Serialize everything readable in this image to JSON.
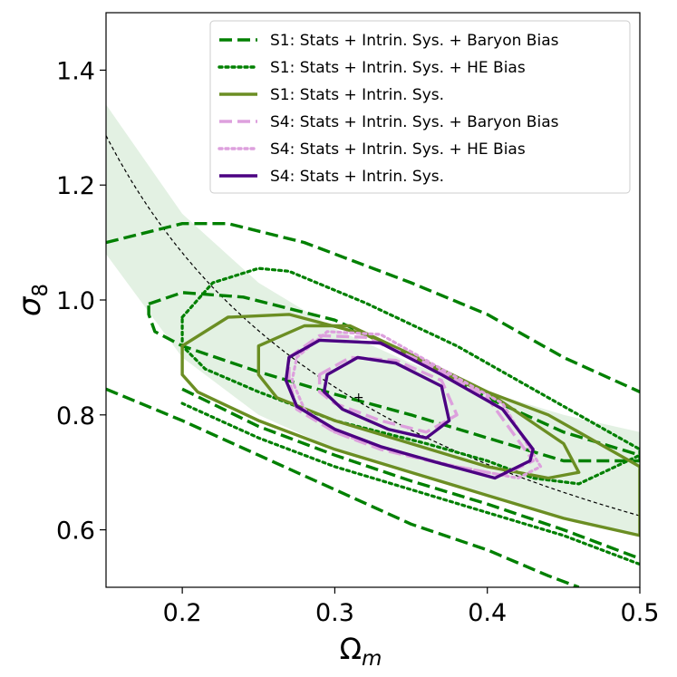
{
  "chart_data": {
    "type": "contour",
    "xlabel": "Ω",
    "xlabel_sub": "m",
    "ylabel": "σ",
    "ylabel_sub": "8",
    "xlim": [
      0.15,
      0.5
    ],
    "ylim": [
      0.5,
      1.5
    ],
    "xticks": [
      0.2,
      0.3,
      0.4,
      0.5
    ],
    "xtick_labels": [
      "0.2",
      "0.3",
      "0.4",
      "0.5"
    ],
    "yticks": [
      0.6,
      0.8,
      1.0,
      1.2,
      1.4
    ],
    "ytick_labels": [
      "0.6",
      "0.8",
      "1.0",
      "1.2",
      "1.4"
    ],
    "colors": {
      "s1": "#008000",
      "s1_baseline": "#6b8e23",
      "s4_bias": "#dda0dd",
      "s4_baseline": "#4b0082",
      "band": "#e3f1e3",
      "fiducial_curve": "#000000"
    },
    "legend_position": "top-right",
    "legend": [
      {
        "label": "S1: Stats + Intrin. Sys. + Baryon Bias",
        "style": "dashed",
        "color": "#008000"
      },
      {
        "label": "S1: Stats + Intrin. Sys. + HE Bias",
        "style": "dotted",
        "color": "#008000"
      },
      {
        "label": "S1: Stats + Intrin. Sys.",
        "style": "solid",
        "color": "#6b8e23"
      },
      {
        "label": "S4: Stats + Intrin. Sys. + Baryon Bias",
        "style": "dashed",
        "color": "#dda0dd"
      },
      {
        "label": "S4: Stats + Intrin. Sys. + HE Bias",
        "style": "dotted",
        "color": "#dda0dd"
      },
      {
        "label": "S4: Stats + Intrin. Sys.",
        "style": "solid",
        "color": "#4b0082"
      }
    ],
    "fiducial_point": {
      "x": 0.3156,
      "y": 0.831
    },
    "degeneracy_curve": {
      "form": "sigma8 = A * Om^-p",
      "A": 0.412,
      "p": 0.6
    },
    "band": {
      "upper": [
        [
          0.15,
          1.34
        ],
        [
          0.2,
          1.15
        ],
        [
          0.25,
          1.03
        ],
        [
          0.3,
          0.95
        ],
        [
          0.35,
          0.89
        ],
        [
          0.4,
          0.84
        ],
        [
          0.45,
          0.8
        ],
        [
          0.5,
          0.77
        ]
      ],
      "lower": [
        [
          0.15,
          1.08
        ],
        [
          0.2,
          0.9
        ],
        [
          0.25,
          0.8
        ],
        [
          0.3,
          0.74
        ],
        [
          0.35,
          0.7
        ],
        [
          0.4,
          0.66
        ],
        [
          0.45,
          0.62
        ],
        [
          0.5,
          0.59
        ]
      ]
    },
    "series": [
      {
        "name": "S1 Baryon Bias 68%",
        "style": "dashed",
        "color": "#008000",
        "points": [
          [
            0.178,
            0.993
          ],
          [
            0.2,
            1.013
          ],
          [
            0.24,
            1.005
          ],
          [
            0.3,
            0.965
          ],
          [
            0.35,
            0.905
          ],
          [
            0.4,
            0.83
          ],
          [
            0.45,
            0.77
          ],
          [
            0.5,
            0.73
          ],
          [
            0.5,
            0.72
          ],
          [
            0.45,
            0.72
          ],
          [
            0.4,
            0.76
          ],
          [
            0.35,
            0.8
          ],
          [
            0.3,
            0.836
          ],
          [
            0.25,
            0.875
          ],
          [
            0.2,
            0.92
          ],
          [
            0.182,
            0.945
          ],
          [
            0.178,
            0.975
          ]
        ]
      },
      {
        "name": "S1 Baryon Bias 95%",
        "style": "dashed",
        "color": "#008000",
        "points": [
          [
            0.15,
            1.1
          ],
          [
            0.2,
            1.133
          ],
          [
            0.23,
            1.133
          ],
          [
            0.28,
            1.1
          ],
          [
            0.35,
            1.03
          ],
          [
            0.4,
            0.975
          ],
          [
            0.45,
            0.9
          ],
          [
            0.5,
            0.84
          ]
        ]
      },
      {
        "name": "S1 Baryon Bias 95% lower",
        "style": "dashed",
        "color": "#008000",
        "points": [
          [
            0.15,
            0.845
          ],
          [
            0.2,
            0.79
          ],
          [
            0.25,
            0.73
          ],
          [
            0.3,
            0.67
          ],
          [
            0.35,
            0.61
          ],
          [
            0.4,
            0.565
          ],
          [
            0.44,
            0.52
          ],
          [
            0.46,
            0.5
          ]
        ]
      },
      {
        "name": "S1 Baryon Bias 68% lower",
        "style": "dashed",
        "color": "#008000",
        "points": [
          [
            0.2,
            0.845
          ],
          [
            0.25,
            0.78
          ],
          [
            0.3,
            0.73
          ],
          [
            0.35,
            0.685
          ],
          [
            0.4,
            0.645
          ],
          [
            0.45,
            0.6
          ],
          [
            0.5,
            0.55
          ]
        ]
      },
      {
        "name": "S1 HE Bias 68%",
        "style": "dotted",
        "color": "#008000",
        "points": [
          [
            0.2,
            0.97
          ],
          [
            0.22,
            1.03
          ],
          [
            0.25,
            1.055
          ],
          [
            0.27,
            1.05
          ],
          [
            0.32,
            0.995
          ],
          [
            0.38,
            0.92
          ],
          [
            0.43,
            0.845
          ],
          [
            0.5,
            0.74
          ],
          [
            0.5,
            0.73
          ],
          [
            0.46,
            0.68
          ],
          [
            0.43,
            0.69
          ],
          [
            0.4,
            0.72
          ],
          [
            0.36,
            0.75
          ],
          [
            0.3,
            0.79
          ],
          [
            0.25,
            0.84
          ],
          [
            0.215,
            0.88
          ],
          [
            0.2,
            0.92
          ]
        ]
      },
      {
        "name": "S1 HE Bias 95% lower",
        "style": "dotted",
        "color": "#008000",
        "points": [
          [
            0.2,
            0.82
          ],
          [
            0.25,
            0.76
          ],
          [
            0.3,
            0.71
          ],
          [
            0.35,
            0.67
          ],
          [
            0.4,
            0.63
          ],
          [
            0.45,
            0.59
          ],
          [
            0.5,
            0.54
          ]
        ]
      },
      {
        "name": "S1 Baseline 68%",
        "style": "solid",
        "color": "#6b8e23",
        "points": [
          [
            0.25,
            0.92
          ],
          [
            0.28,
            0.955
          ],
          [
            0.31,
            0.955
          ],
          [
            0.35,
            0.905
          ],
          [
            0.4,
            0.84
          ],
          [
            0.45,
            0.75
          ],
          [
            0.46,
            0.7
          ],
          [
            0.44,
            0.69
          ],
          [
            0.4,
            0.71
          ],
          [
            0.35,
            0.75
          ],
          [
            0.3,
            0.79
          ],
          [
            0.262,
            0.83
          ],
          [
            0.25,
            0.87
          ]
        ]
      },
      {
        "name": "S1 Baseline 95%",
        "style": "solid",
        "color": "#6b8e23",
        "points": [
          [
            0.2,
            0.92
          ],
          [
            0.23,
            0.97
          ],
          [
            0.27,
            0.975
          ],
          [
            0.32,
            0.94
          ],
          [
            0.38,
            0.86
          ],
          [
            0.44,
            0.8
          ],
          [
            0.5,
            0.71
          ],
          [
            0.5,
            0.59
          ],
          [
            0.45,
            0.62
          ],
          [
            0.4,
            0.66
          ],
          [
            0.35,
            0.7
          ],
          [
            0.3,
            0.74
          ],
          [
            0.25,
            0.79
          ],
          [
            0.21,
            0.84
          ],
          [
            0.2,
            0.87
          ]
        ]
      },
      {
        "name": "S4 Baryon Bias 95%",
        "style": "dashed",
        "color": "#dda0dd",
        "points": [
          [
            0.27,
            0.9
          ],
          [
            0.29,
            0.938
          ],
          [
            0.32,
            0.935
          ],
          [
            0.36,
            0.89
          ],
          [
            0.4,
            0.83
          ],
          [
            0.43,
            0.72
          ],
          [
            0.41,
            0.695
          ],
          [
            0.37,
            0.715
          ],
          [
            0.33,
            0.74
          ],
          [
            0.3,
            0.77
          ],
          [
            0.275,
            0.81
          ],
          [
            0.27,
            0.86
          ]
        ]
      },
      {
        "name": "S4 Baryon Bias 68%",
        "style": "dashed",
        "color": "#dda0dd",
        "points": [
          [
            0.29,
            0.87
          ],
          [
            0.31,
            0.9
          ],
          [
            0.34,
            0.895
          ],
          [
            0.37,
            0.86
          ],
          [
            0.38,
            0.8
          ],
          [
            0.36,
            0.77
          ],
          [
            0.33,
            0.79
          ],
          [
            0.3,
            0.82
          ],
          [
            0.29,
            0.84
          ]
        ]
      },
      {
        "name": "S4 HE Bias 95%",
        "style": "dotted",
        "color": "#dda0dd",
        "points": [
          [
            0.275,
            0.9
          ],
          [
            0.295,
            0.945
          ],
          [
            0.33,
            0.94
          ],
          [
            0.37,
            0.88
          ],
          [
            0.41,
            0.82
          ],
          [
            0.435,
            0.71
          ],
          [
            0.42,
            0.69
          ],
          [
            0.38,
            0.71
          ],
          [
            0.34,
            0.735
          ],
          [
            0.3,
            0.77
          ],
          [
            0.28,
            0.81
          ],
          [
            0.272,
            0.86
          ]
        ]
      },
      {
        "name": "S4 Baseline 95%",
        "style": "solid",
        "color": "#4b0082",
        "points": [
          [
            0.27,
            0.9
          ],
          [
            0.29,
            0.93
          ],
          [
            0.33,
            0.925
          ],
          [
            0.37,
            0.87
          ],
          [
            0.41,
            0.81
          ],
          [
            0.43,
            0.74
          ],
          [
            0.428,
            0.72
          ],
          [
            0.405,
            0.69
          ],
          [
            0.37,
            0.715
          ],
          [
            0.33,
            0.745
          ],
          [
            0.3,
            0.775
          ],
          [
            0.275,
            0.815
          ],
          [
            0.268,
            0.86
          ]
        ]
      },
      {
        "name": "S4 Baseline 68%",
        "style": "solid",
        "color": "#4b0082",
        "points": [
          [
            0.295,
            0.87
          ],
          [
            0.315,
            0.9
          ],
          [
            0.34,
            0.89
          ],
          [
            0.37,
            0.85
          ],
          [
            0.375,
            0.79
          ],
          [
            0.36,
            0.76
          ],
          [
            0.335,
            0.775
          ],
          [
            0.305,
            0.81
          ],
          [
            0.293,
            0.84
          ]
        ]
      }
    ]
  }
}
